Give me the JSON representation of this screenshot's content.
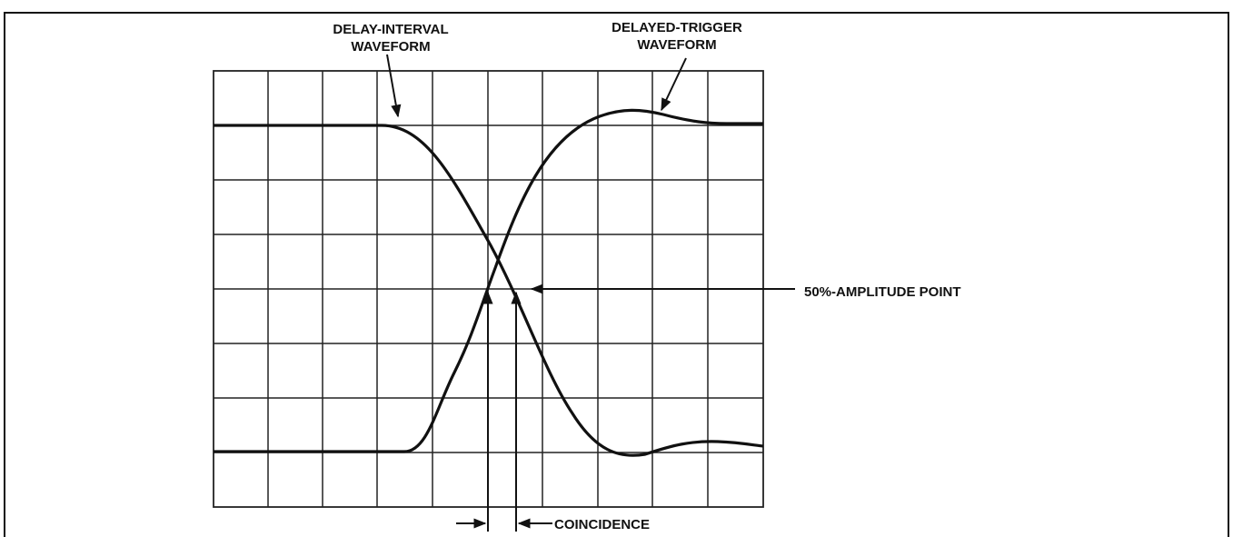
{
  "annotations": [
    {
      "text": "DELAY-INTERVAL"
    },
    {
      "text": "WAVEFORM"
    },
    {
      "text": "DELAYED-TRIGGER"
    },
    {
      "text": "WAVEFORM"
    },
    {
      "text": "50%-AMPLITUDE POINT"
    },
    {
      "text": "COINCIDENCE"
    }
  ]
}
